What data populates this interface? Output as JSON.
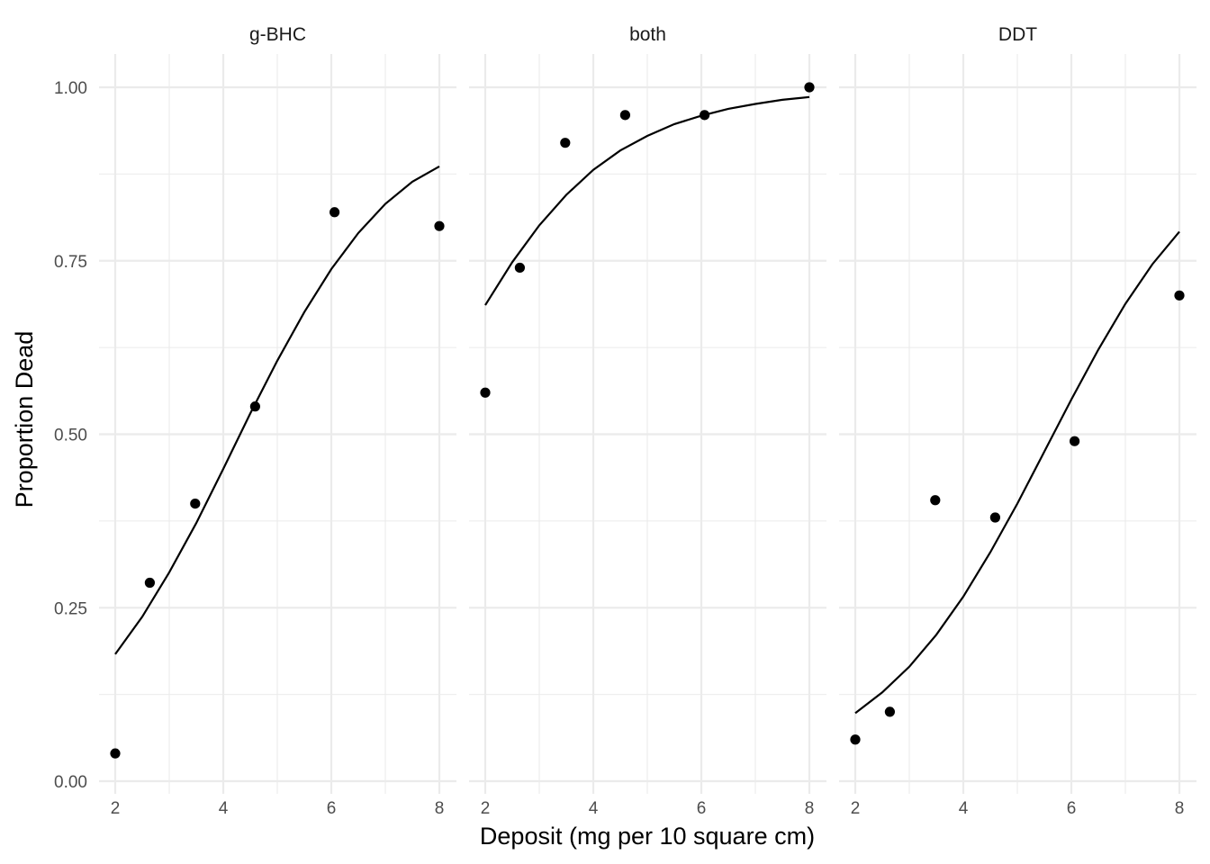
{
  "chart_data": {
    "type": "scatter",
    "xlabel": "Deposit (mg per 10 square cm)",
    "ylabel": "Proportion Dead",
    "xlim": [
      2,
      8
    ],
    "ylim": [
      0,
      1
    ],
    "x_ticks": [
      "2",
      "4",
      "6",
      "8"
    ],
    "y_ticks": [
      "0.00",
      "0.25",
      "0.50",
      "0.75",
      "1.00"
    ],
    "x_tick_values": [
      2,
      4,
      6,
      8
    ],
    "y_tick_values": [
      0,
      0.25,
      0.5,
      0.75,
      1
    ],
    "grid": true,
    "facets": [
      {
        "label": "g-BHC",
        "points": [
          {
            "x": 2.0,
            "y": 0.04
          },
          {
            "x": 2.64,
            "y": 0.286
          },
          {
            "x": 3.48,
            "y": 0.4
          },
          {
            "x": 4.59,
            "y": 0.54
          },
          {
            "x": 6.06,
            "y": 0.82
          },
          {
            "x": 8.0,
            "y": 0.8
          }
        ],
        "fit": {
          "x": [
            2,
            2.5,
            3,
            3.5,
            4,
            4.5,
            5,
            5.5,
            6,
            6.5,
            7,
            7.5,
            8
          ],
          "y": [
            0.183,
            0.237,
            0.301,
            0.372,
            0.45,
            0.53,
            0.606,
            0.676,
            0.738,
            0.79,
            0.832,
            0.864,
            0.886
          ]
        }
      },
      {
        "label": "both",
        "points": [
          {
            "x": 2.0,
            "y": 0.56
          },
          {
            "x": 2.64,
            "y": 0.74
          },
          {
            "x": 3.48,
            "y": 0.92
          },
          {
            "x": 4.59,
            "y": 0.96
          },
          {
            "x": 6.06,
            "y": 0.96
          },
          {
            "x": 8.0,
            "y": 1.0
          }
        ],
        "fit": {
          "x": [
            2,
            2.5,
            3,
            3.5,
            4,
            4.5,
            5,
            5.5,
            6,
            6.5,
            7,
            7.5,
            8
          ],
          "y": [
            0.686,
            0.748,
            0.801,
            0.845,
            0.881,
            0.909,
            0.93,
            0.947,
            0.959,
            0.969,
            0.976,
            0.982,
            0.986
          ]
        }
      },
      {
        "label": "DDT",
        "points": [
          {
            "x": 2.0,
            "y": 0.06
          },
          {
            "x": 2.64,
            "y": 0.1
          },
          {
            "x": 3.48,
            "y": 0.405
          },
          {
            "x": 4.59,
            "y": 0.38
          },
          {
            "x": 6.06,
            "y": 0.49
          },
          {
            "x": 8.0,
            "y": 0.7
          }
        ],
        "fit": {
          "x": [
            2,
            2.5,
            3,
            3.5,
            4,
            4.5,
            5,
            5.5,
            6,
            6.5,
            7,
            7.5,
            8
          ],
          "y": [
            0.098,
            0.128,
            0.165,
            0.211,
            0.266,
            0.33,
            0.4,
            0.475,
            0.55,
            0.622,
            0.688,
            0.745,
            0.792
          ]
        }
      }
    ]
  }
}
